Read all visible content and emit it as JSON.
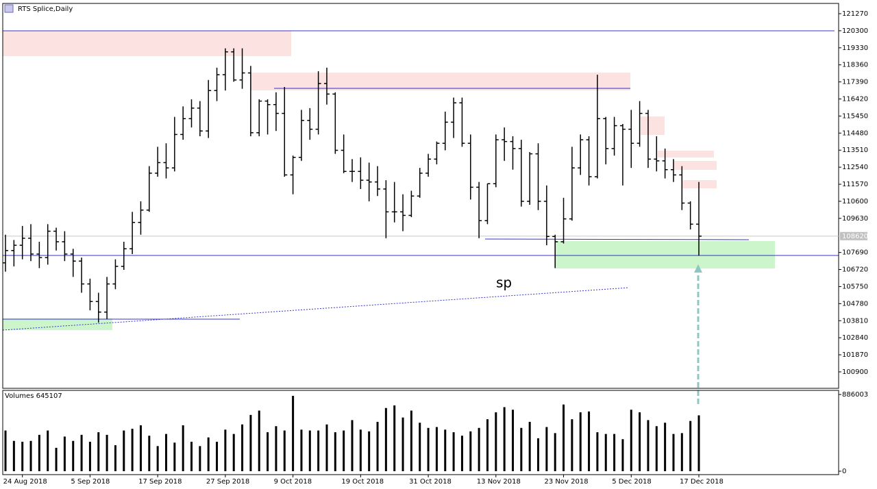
{
  "chart_data": [
    {
      "type": "ohlc",
      "title": "RTS Splice,Daily",
      "annotation": "sp",
      "current_price": 108620,
      "categories": [
        null,
        null,
        "24 Aug 2018",
        null,
        null,
        null,
        null,
        null,
        null,
        null,
        "5 Sep 2018",
        null,
        null,
        null,
        null,
        null,
        null,
        null,
        "17 Sep 2018",
        null,
        null,
        null,
        null,
        null,
        null,
        null,
        "27 Sep 2018",
        null,
        null,
        null,
        null,
        null,
        null,
        null,
        "9 Oct 2018",
        null,
        null,
        null,
        null,
        null,
        null,
        null,
        "19 Oct 2018",
        null,
        null,
        null,
        null,
        null,
        null,
        null,
        "31 Oct 2018",
        null,
        null,
        null,
        null,
        null,
        null,
        null,
        "13 Nov 2018",
        null,
        null,
        null,
        null,
        null,
        null,
        null,
        "23 Nov 2018",
        null,
        null,
        null,
        null,
        null,
        null,
        null,
        "5 Dec 2018",
        null,
        null,
        null,
        null,
        null,
        null,
        null,
        "17 Dec 2018"
      ],
      "color": "#000000",
      "open": [
        107100,
        107800,
        108100,
        108500,
        107600,
        107400,
        108900,
        108300,
        107600,
        107200,
        105900,
        104900,
        104300,
        105900,
        106900,
        107900,
        109400,
        110100,
        112200,
        112800,
        112500,
        114400,
        115300,
        115900,
        114600,
        116900,
        117800,
        119100,
        117500,
        117900,
        114500,
        116300,
        116100,
        115600,
        112100,
        113100,
        115200,
        114700,
        117300,
        116700,
        113500,
        112300,
        112300,
        111800,
        111700,
        111300,
        110000,
        110000,
        109800,
        110900,
        112200,
        113000,
        113900,
        115100,
        116200,
        113900,
        111400,
        109500,
        111600,
        114100,
        114000,
        113600,
        110600,
        113300,
        110600,
        108600,
        108300,
        109600,
        112500,
        114100,
        112000,
        115300,
        113600,
        114900,
        114700,
        113900,
        115600,
        113000,
        112900,
        112400,
        112100,
        110500,
        109300
      ],
      "high": [
        108700,
        108400,
        109200,
        109300,
        108300,
        109300,
        109100,
        108900,
        107900,
        107400,
        106200,
        105400,
        106300,
        107300,
        108300,
        110000,
        110600,
        112600,
        113700,
        113900,
        115400,
        116000,
        116400,
        116300,
        117500,
        118200,
        119300,
        119300,
        119300,
        118300,
        116400,
        116400,
        116800,
        117100,
        113200,
        115800,
        115900,
        118000,
        118200,
        116800,
        114400,
        113000,
        113100,
        112800,
        112600,
        111800,
        111700,
        111000,
        111200,
        112500,
        113300,
        114000,
        115700,
        116500,
        116500,
        114400,
        111700,
        111600,
        114400,
        114800,
        114300,
        114100,
        113400,
        113900,
        111500,
        108700,
        110800,
        113700,
        114400,
        114300,
        117800,
        115400,
        115400,
        115000,
        115800,
        116300,
        115800,
        114300,
        113600,
        113000,
        112600,
        110600,
        111700
      ],
      "low": [
        106600,
        106900,
        107300,
        107200,
        106800,
        107000,
        107800,
        107200,
        106300,
        105400,
        104400,
        103700,
        103900,
        105600,
        106700,
        107600,
        108700,
        110000,
        112000,
        111900,
        112300,
        114100,
        114800,
        114300,
        114200,
        116300,
        116900,
        117400,
        117000,
        114300,
        114300,
        114400,
        114600,
        112000,
        111000,
        112900,
        114100,
        114400,
        116100,
        113300,
        112200,
        111700,
        111300,
        110600,
        110900,
        108500,
        109400,
        108900,
        109700,
        110800,
        112000,
        112700,
        113500,
        114200,
        113700,
        110700,
        108500,
        109300,
        111400,
        112900,
        112400,
        110300,
        110400,
        110100,
        108100,
        106800,
        108200,
        109500,
        112100,
        111500,
        111900,
        112700,
        113200,
        111500,
        112500,
        113700,
        112500,
        112300,
        111900,
        111700,
        110100,
        109000,
        107500
      ],
      "close": [
        107800,
        108100,
        108500,
        107600,
        107400,
        108900,
        108300,
        107600,
        107200,
        105900,
        104900,
        104300,
        105900,
        106900,
        107900,
        109400,
        110100,
        112200,
        112800,
        112500,
        114400,
        115300,
        115900,
        114600,
        116900,
        117800,
        119100,
        117500,
        117900,
        114500,
        116300,
        116100,
        115600,
        112100,
        113100,
        115200,
        114700,
        117300,
        116700,
        113500,
        112300,
        112300,
        111800,
        111700,
        111300,
        110000,
        110000,
        109800,
        110900,
        112200,
        113000,
        113900,
        115100,
        116200,
        113900,
        111400,
        109500,
        111600,
        114100,
        114000,
        113600,
        110600,
        113300,
        110600,
        108600,
        108300,
        109600,
        112500,
        114100,
        112000,
        115300,
        113600,
        114900,
        114700,
        113900,
        115600,
        113000,
        112900,
        112400,
        112100,
        110500,
        109300,
        108620
      ],
      "ylim": [
        99964,
        121854
      ],
      "yticks": [
        121270,
        120300,
        119330,
        118360,
        117390,
        116420,
        115450,
        114480,
        113510,
        112540,
        111570,
        110600,
        109630,
        107690,
        106720,
        105750,
        104780,
        103810,
        102840,
        101870,
        100900
      ]
    },
    {
      "type": "bar",
      "title": "Volumes 645107",
      "color": "#000000",
      "values": [
        470000,
        350000,
        340000,
        350000,
        420000,
        470000,
        270000,
        400000,
        350000,
        420000,
        340000,
        450000,
        420000,
        300000,
        470000,
        490000,
        530000,
        410000,
        290000,
        430000,
        330000,
        530000,
        340000,
        290000,
        390000,
        340000,
        480000,
        430000,
        540000,
        650000,
        700000,
        450000,
        520000,
        470000,
        870000,
        480000,
        470000,
        470000,
        540000,
        450000,
        470000,
        590000,
        480000,
        460000,
        570000,
        730000,
        760000,
        620000,
        700000,
        560000,
        500000,
        510000,
        480000,
        450000,
        410000,
        460000,
        500000,
        600000,
        680000,
        740000,
        710000,
        500000,
        570000,
        380000,
        510000,
        440000,
        770000,
        600000,
        680000,
        690000,
        450000,
        430000,
        430000,
        370000,
        710000,
        680000,
        590000,
        520000,
        560000,
        430000,
        440000,
        580000,
        645107
      ],
      "ylim": [
        0,
        886003
      ],
      "yticks": [
        886003,
        0
      ]
    }
  ]
}
